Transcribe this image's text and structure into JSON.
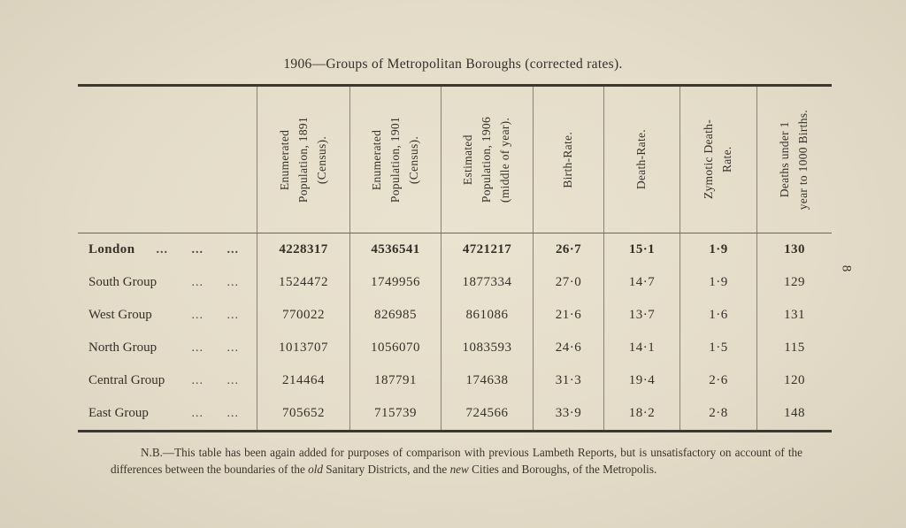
{
  "page": {
    "title": "1906—Groups of Metropolitan Boroughs (corrected rates).",
    "page_number": "8"
  },
  "table": {
    "columns": [
      "Enumerated\nPopulation, 1891\n(Census).",
      "Enumerated\nPopulation, 1901\n(Census).",
      "Estimated\nPopulation, 1906\n(middle of year).",
      "Birth-Rate.",
      "Death-Rate.",
      "Zymotic Death-\nRate.",
      "Deaths under 1\nyear to 1000 Births."
    ],
    "rows": [
      {
        "label": "London",
        "dots": "... ... ...",
        "values": [
          "4228317",
          "4536541",
          "4721217",
          "26·7",
          "15·1",
          "1·9",
          "130"
        ]
      },
      {
        "label": "South Group",
        "dots": "... ...",
        "values": [
          "1524472",
          "1749956",
          "1877334",
          "27·0",
          "14·7",
          "1·9",
          "129"
        ]
      },
      {
        "label": "West Group",
        "dots": "... ...",
        "values": [
          "770022",
          "826985",
          "861086",
          "21·6",
          "13·7",
          "1·6",
          "131"
        ]
      },
      {
        "label": "North Group",
        "dots": "... ...",
        "values": [
          "1013707",
          "1056070",
          "1083593",
          "24·6",
          "14·1",
          "1·5",
          "115"
        ]
      },
      {
        "label": "Central Group",
        "dots": "... ...",
        "values": [
          "214464",
          "187791",
          "174638",
          "31·3",
          "19·4",
          "2·6",
          "120"
        ]
      },
      {
        "label": "East Group",
        "dots": "... ...",
        "values": [
          "705652",
          "715739",
          "724566",
          "33·9",
          "18·2",
          "2·8",
          "148"
        ]
      }
    ]
  },
  "footnote": {
    "s1": "N.B.—This table has been again added for purposes of comparison with previous Lambeth Reports, but is unsatisfactory on account of the differences between the boundaries of the ",
    "old_word": "old",
    "s2": " Sanitary Districts, and the ",
    "new_word": "new",
    "s3": " Cities and Boroughs, of the Metropolis."
  }
}
